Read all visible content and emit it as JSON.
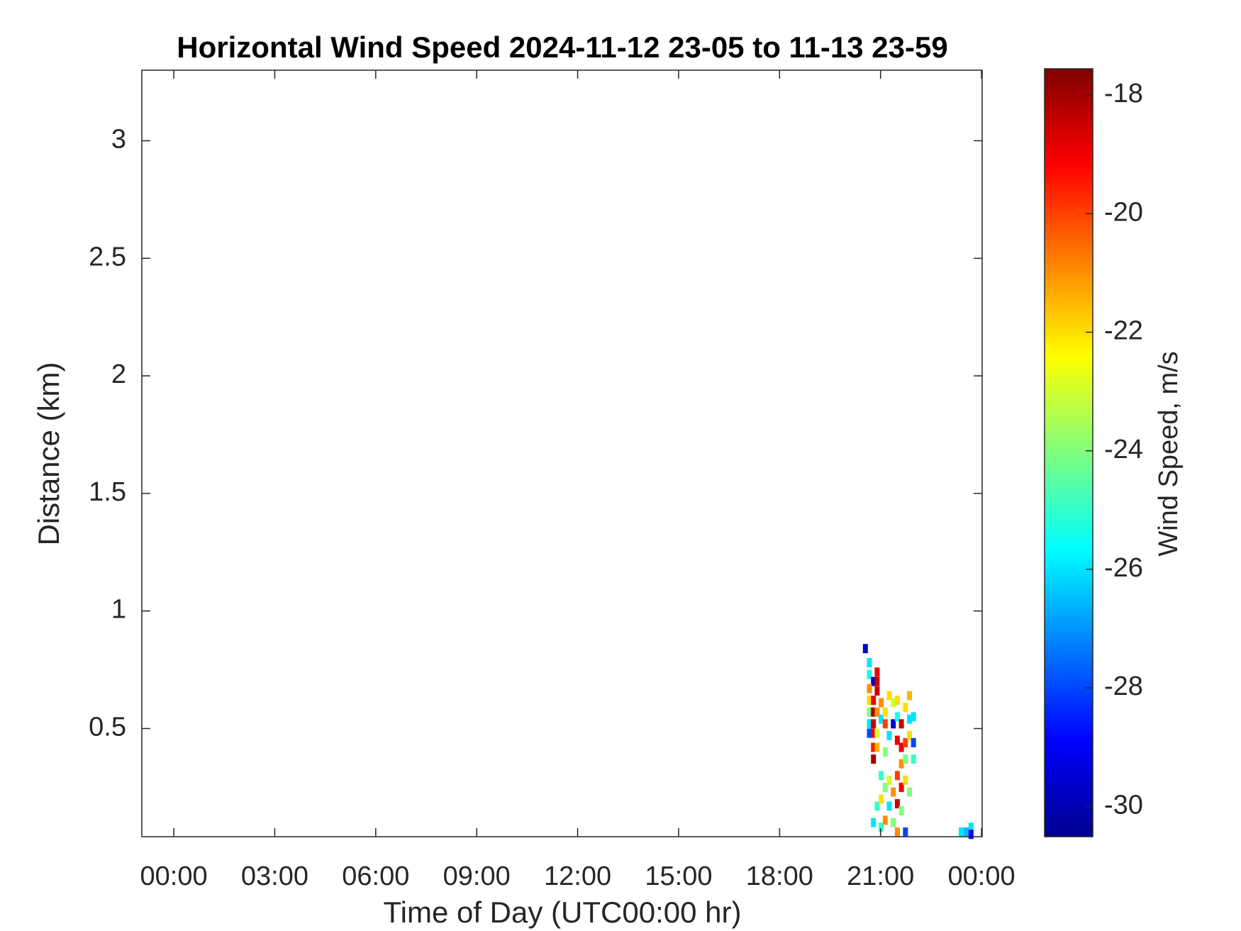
{
  "chart_data": {
    "type": "heatmap",
    "title": "Horizontal Wind Speed 2024-11-12 23-05 to 11-13 23-59",
    "x_label": "Time of Day (UTC00:00 hr)",
    "y_label": "Distance (km)",
    "colorbar_label": "Wind Speed, m/s",
    "colormap": "jet",
    "x": [
      20.55,
      20.67,
      20.67,
      20.79,
      20.9,
      20.9,
      20.67,
      20.67,
      20.79,
      20.9,
      20.67,
      20.79,
      20.9,
      20.67,
      20.67,
      20.79,
      20.79,
      20.9,
      20.79,
      20.79,
      20.9,
      21.02,
      21.02,
      21.14,
      21.14,
      21.14,
      21.26,
      21.26,
      21.38,
      21.38,
      21.5,
      21.5,
      21.5,
      21.62,
      21.62,
      21.62,
      21.74,
      21.74,
      21.74,
      21.86,
      21.86,
      21.86,
      21.98,
      21.98,
      21.98,
      21.02,
      21.14,
      21.26,
      21.38,
      21.5,
      21.62,
      21.74,
      21.86,
      20.9,
      21.02,
      21.26,
      21.5,
      21.62,
      20.79,
      21.02,
      21.14,
      21.38,
      21.5,
      21.74,
      23.4,
      23.55,
      23.69,
      23.69
    ],
    "y": [
      0.84,
      0.78,
      0.73,
      0.7,
      0.74,
      0.7,
      0.67,
      0.62,
      0.62,
      0.66,
      0.57,
      0.57,
      0.57,
      0.52,
      0.48,
      0.52,
      0.48,
      0.48,
      0.42,
      0.37,
      0.42,
      0.61,
      0.54,
      0.57,
      0.52,
      0.4,
      0.64,
      0.47,
      0.52,
      0.61,
      0.62,
      0.55,
      0.45,
      0.52,
      0.42,
      0.35,
      0.59,
      0.44,
      0.37,
      0.64,
      0.54,
      0.47,
      0.55,
      0.44,
      0.37,
      0.3,
      0.25,
      0.28,
      0.23,
      0.3,
      0.25,
      0.28,
      0.23,
      0.17,
      0.2,
      0.17,
      0.18,
      0.15,
      0.1,
      0.08,
      0.11,
      0.1,
      0.06,
      0.06,
      0.06,
      0.06,
      0.08,
      0.05
    ],
    "values": [
      -29.5,
      -26,
      -25.5,
      -29.5,
      -19,
      -18.5,
      -21,
      -22,
      -19,
      -18.5,
      -24,
      -18,
      -21,
      -26,
      -28,
      -18.5,
      -19,
      -23,
      -19.5,
      -18,
      -21.5,
      -21,
      -26,
      -22,
      -20,
      -24,
      -22,
      -26,
      -29.5,
      -23,
      -22,
      -25.5,
      -19,
      -18.5,
      -19,
      -21,
      -22,
      -20,
      -24,
      -21.5,
      -26,
      -22,
      -26,
      -28,
      -25,
      -25,
      -24,
      -23,
      -21,
      -20,
      -19,
      -22,
      -24,
      -25,
      -22,
      -26,
      -18.5,
      -24,
      -26,
      -25,
      -21,
      -24,
      -21,
      -28,
      -26,
      -26.5,
      -26,
      -29
    ],
    "xlim": [
      -0.95,
      24.02
    ],
    "xticks": [
      {
        "value": 0,
        "label": "00:00"
      },
      {
        "value": 3,
        "label": "03:00"
      },
      {
        "value": 6,
        "label": "06:00"
      },
      {
        "value": 9,
        "label": "09:00"
      },
      {
        "value": 12,
        "label": "12:00"
      },
      {
        "value": 15,
        "label": "15:00"
      },
      {
        "value": 18,
        "label": "18:00"
      },
      {
        "value": 21,
        "label": "21:00"
      },
      {
        "value": 24,
        "label": "00:00"
      }
    ],
    "ylim": [
      0.04,
      3.3
    ],
    "yticks": [
      0.5,
      1,
      1.5,
      2,
      2.5,
      3
    ],
    "clim": [
      -30.51,
      -17.58
    ],
    "cticks": [
      -30,
      -28,
      -26,
      -24,
      -22,
      -20,
      -18
    ]
  }
}
